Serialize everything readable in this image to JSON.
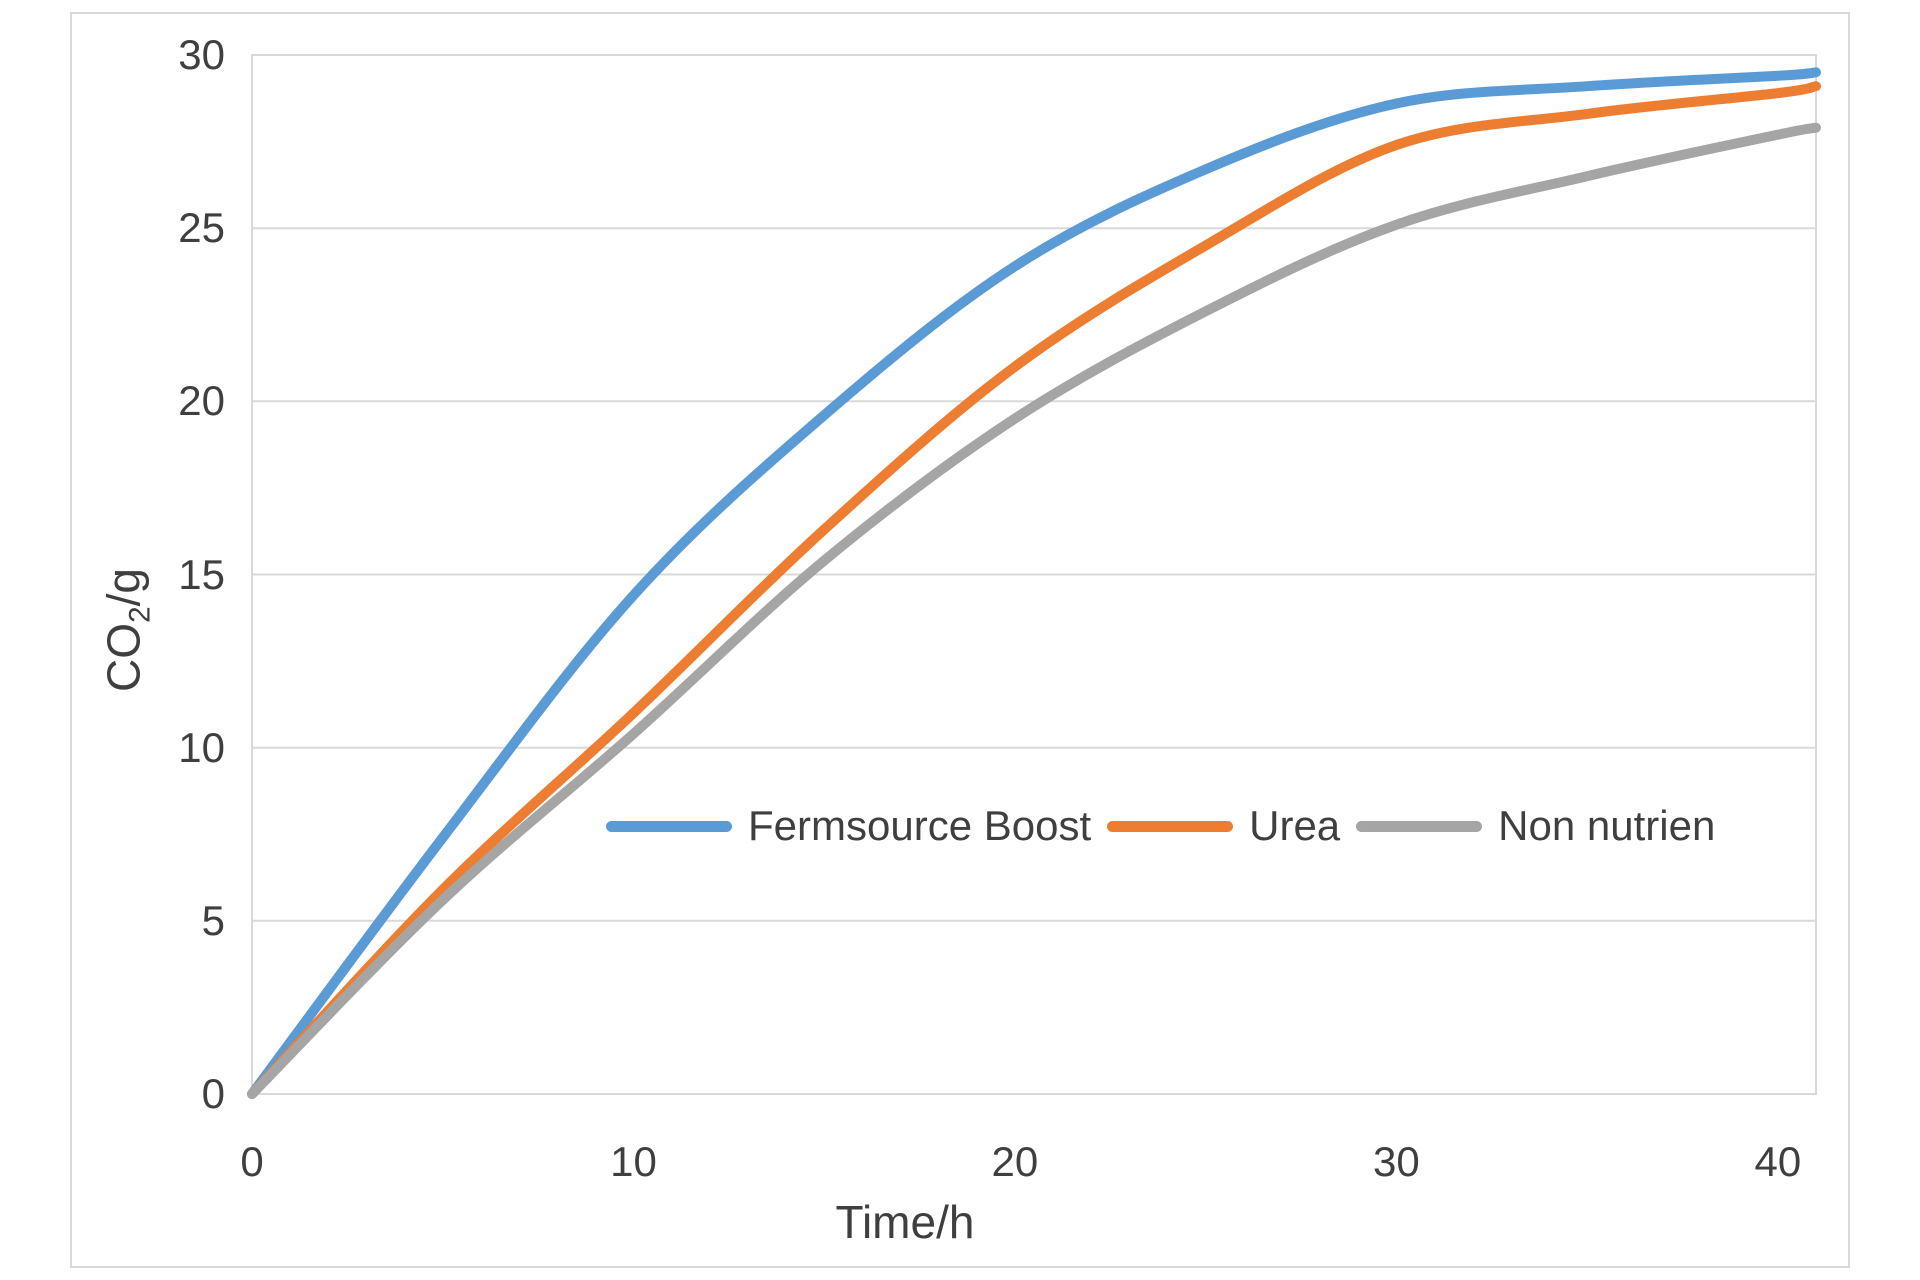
{
  "chart_data": {
    "type": "line",
    "title": "",
    "xlabel": "Time/h",
    "ylabel": "CO2/g",
    "ylabel_parts": {
      "base": "CO",
      "sub": "2",
      "rest": "/g"
    },
    "x": [
      0,
      5,
      10,
      15,
      20,
      25,
      30,
      35,
      40,
      41
    ],
    "series": [
      {
        "name": "Fermsource Boost",
        "color": "#5B9BD5",
        "values": [
          0,
          7.4,
          14.4,
          19.6,
          23.9,
          26.7,
          28.6,
          29.1,
          29.4,
          29.5
        ]
      },
      {
        "name": "Urea",
        "color": "#ED7D31",
        "values": [
          0,
          5.9,
          11.0,
          16.3,
          21.0,
          24.5,
          27.4,
          28.3,
          28.9,
          29.1
        ]
      },
      {
        "name": "Non nutrien",
        "color": "#A5A5A5",
        "values": [
          0,
          5.6,
          10.4,
          15.4,
          19.5,
          22.6,
          25.1,
          26.5,
          27.7,
          27.9
        ]
      }
    ],
    "xlim": [
      0,
      41
    ],
    "ylim": [
      0,
      30
    ],
    "x_ticks": [
      0,
      10,
      20,
      30,
      40
    ],
    "y_ticks": [
      0,
      5,
      10,
      15,
      20,
      25,
      30
    ],
    "grid": "horizontal",
    "legend_position": "inside-middle",
    "line_width": 10,
    "colors": {
      "gridline": "#D9D9D9",
      "plot_border": "#D9D9D9",
      "chart_frame": "#D9D9D9",
      "text": "#3F3F3F"
    }
  }
}
